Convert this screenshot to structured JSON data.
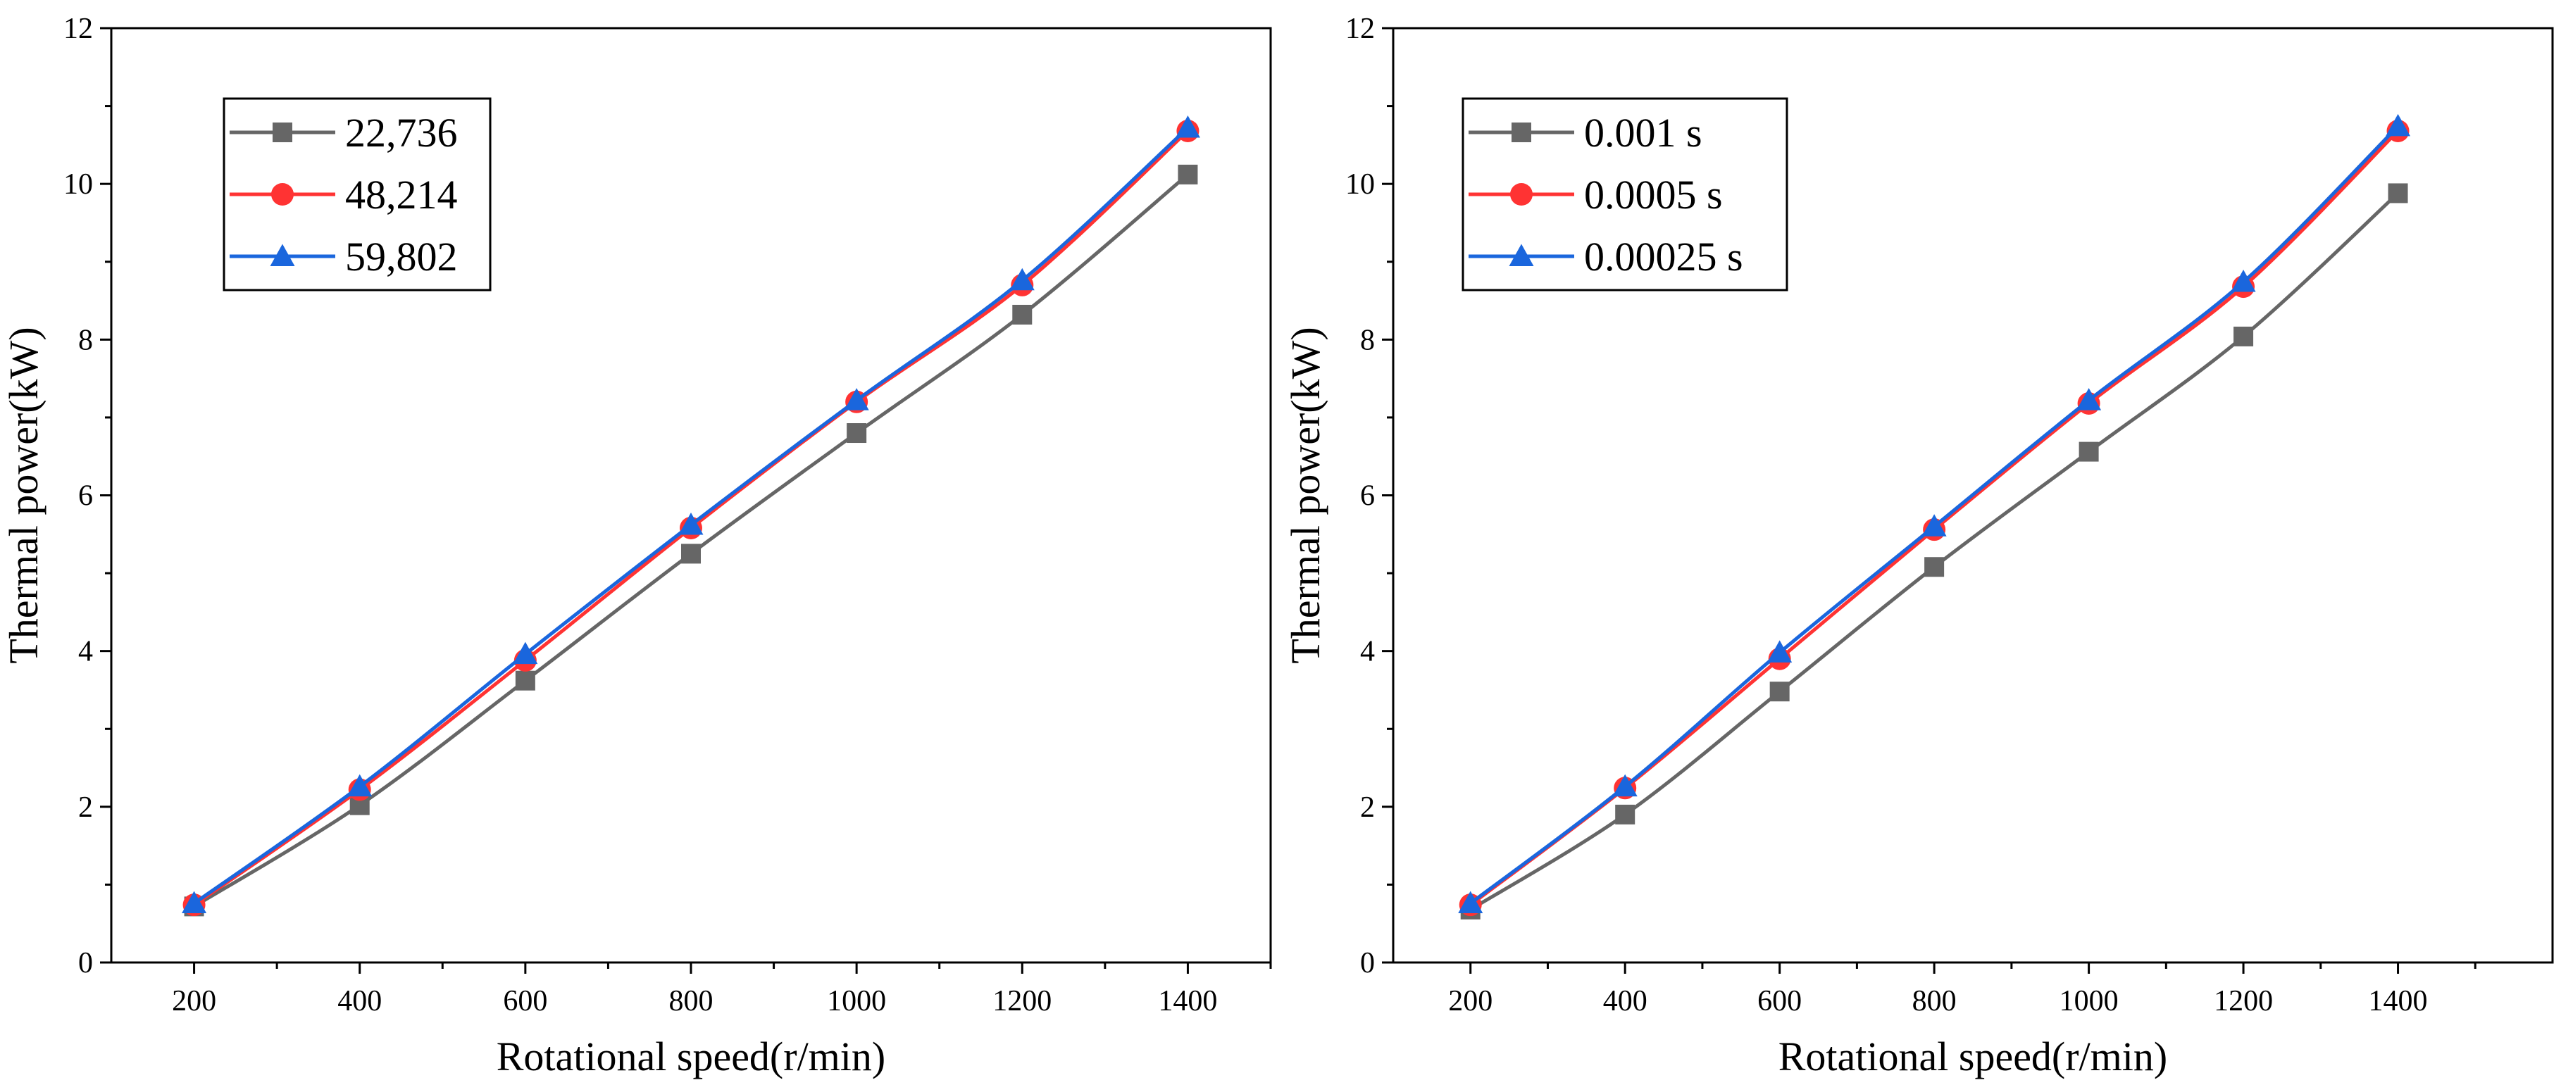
{
  "chart_data": [
    {
      "type": "line",
      "title": "",
      "xlabel": "Rotational speed(r/min)",
      "ylabel": "Thermal power(kW)",
      "x": [
        200,
        400,
        600,
        800,
        1000,
        1200,
        1400
      ],
      "xticks": [
        200,
        400,
        600,
        800,
        1000,
        1200,
        1400
      ],
      "xlim": [
        100,
        1500
      ],
      "ylim": [
        0,
        12
      ],
      "yticks": [
        0,
        2,
        4,
        6,
        8,
        10,
        12
      ],
      "grid": false,
      "legend_position": "top-left",
      "series": [
        {
          "name": "22,736",
          "color": "#666666",
          "marker": "square",
          "values": [
            0.72,
            2.02,
            3.62,
            5.25,
            6.8,
            8.32,
            10.12
          ]
        },
        {
          "name": "48,214",
          "color": "#ff3333",
          "marker": "circle",
          "values": [
            0.74,
            2.22,
            3.88,
            5.58,
            7.2,
            8.7,
            10.68
          ]
        },
        {
          "name": "59,802",
          "color": "#1a66dd",
          "marker": "triangle",
          "values": [
            0.76,
            2.26,
            3.96,
            5.62,
            7.22,
            8.76,
            10.72
          ]
        }
      ]
    },
    {
      "type": "line",
      "title": "",
      "xlabel": "Rotational speed(r/min)",
      "ylabel": "Thermal power(kW)",
      "x": [
        200,
        400,
        600,
        800,
        1000,
        1200,
        1400
      ],
      "xticks": [
        200,
        400,
        600,
        800,
        1000,
        1200,
        1400
      ],
      "xlim": [
        100,
        1600
      ],
      "ylim": [
        0,
        12
      ],
      "yticks": [
        0,
        2,
        4,
        6,
        8,
        10,
        12
      ],
      "grid": false,
      "legend_position": "top-left",
      "series": [
        {
          "name": "0.001 s",
          "color": "#666666",
          "marker": "square",
          "values": [
            0.68,
            1.9,
            3.48,
            5.08,
            6.56,
            8.04,
            9.88
          ]
        },
        {
          "name": "0.0005 s",
          "color": "#ff3333",
          "marker": "circle",
          "values": [
            0.74,
            2.24,
            3.9,
            5.56,
            7.18,
            8.68,
            10.68
          ]
        },
        {
          "name": "0.00025 s",
          "color": "#1a66dd",
          "marker": "triangle",
          "values": [
            0.76,
            2.26,
            3.98,
            5.6,
            7.22,
            8.74,
            10.74
          ]
        }
      ]
    }
  ]
}
